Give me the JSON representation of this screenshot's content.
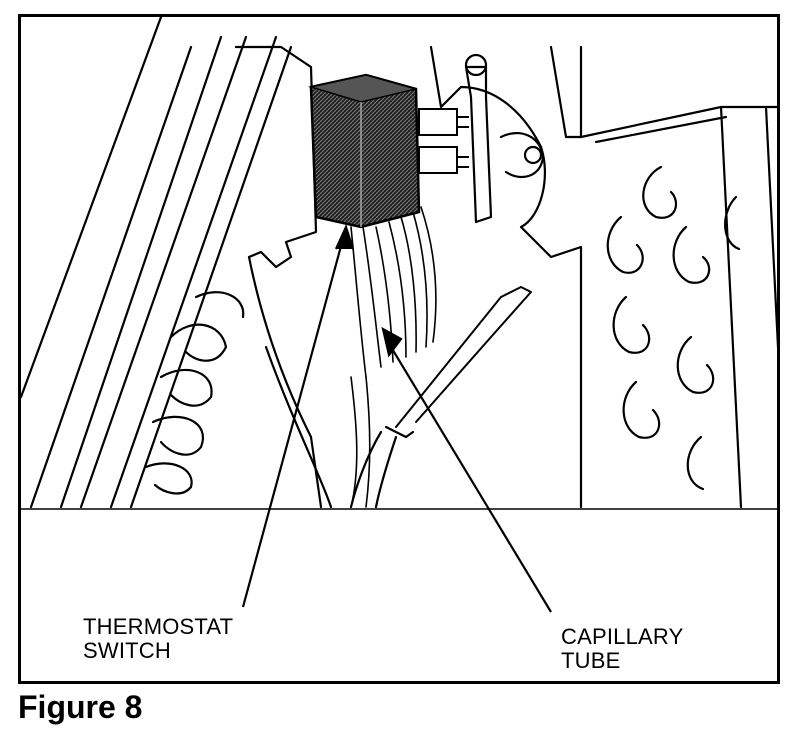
{
  "figure": {
    "caption": "Figure 8",
    "labels": {
      "thermostat_line1": "THERMOSTAT",
      "thermostat_line2": "SWITCH",
      "capillary_line1": "CAPILLARY",
      "capillary_line2": "TUBE"
    }
  },
  "colors": {
    "ink": "#000000",
    "paper": "#ffffff",
    "shade": "#3a3a3a"
  }
}
